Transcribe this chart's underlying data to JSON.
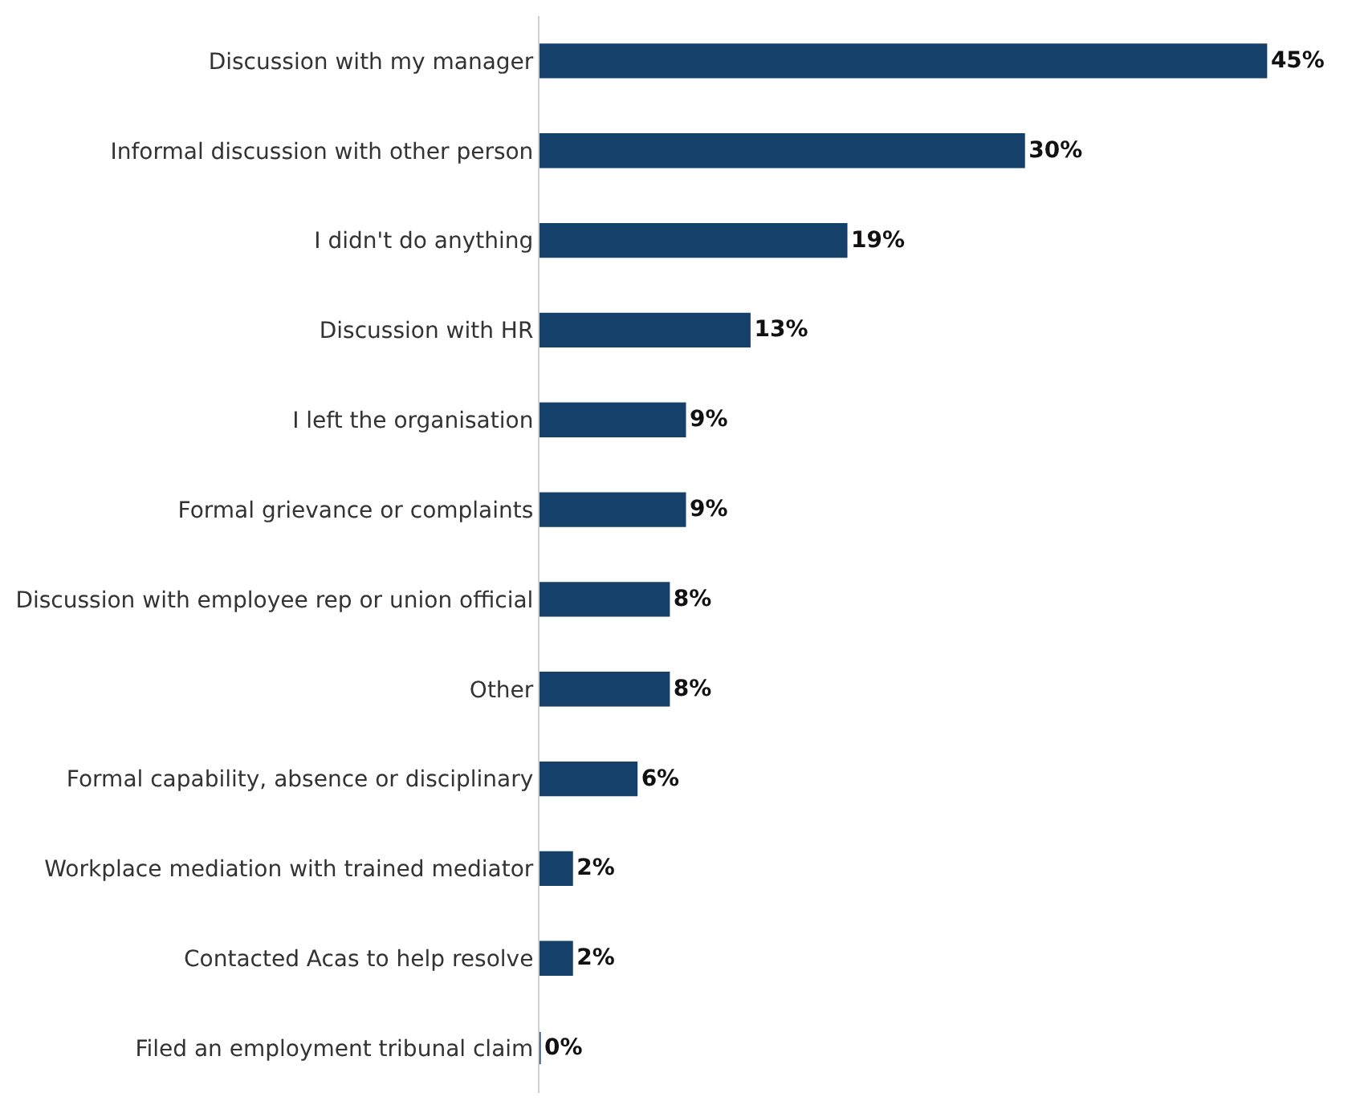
{
  "chart_data": {
    "type": "bar",
    "orientation": "horizontal",
    "categories": [
      "Discussion with my manager",
      "Informal discussion with other person",
      "I didn't do anything",
      "Discussion with HR",
      "I left the organisation",
      "Formal grievance or complaints",
      "Discussion with employee rep or union official",
      "Other",
      "Formal capability, absence or disciplinary",
      "Workplace mediation with trained mediator",
      "Contacted Acas to help resolve",
      "Filed an employment tribunal claim"
    ],
    "values": [
      45,
      30,
      19,
      13,
      9,
      9,
      8,
      8,
      6,
      2,
      2,
      0
    ],
    "value_labels": [
      "45%",
      "30%",
      "19%",
      "13%",
      "9%",
      "9%",
      "8%",
      "8%",
      "6%",
      "2%",
      "2%",
      "0%"
    ],
    "color": "#15406a",
    "tick_labels": "y",
    "legend": false
  }
}
